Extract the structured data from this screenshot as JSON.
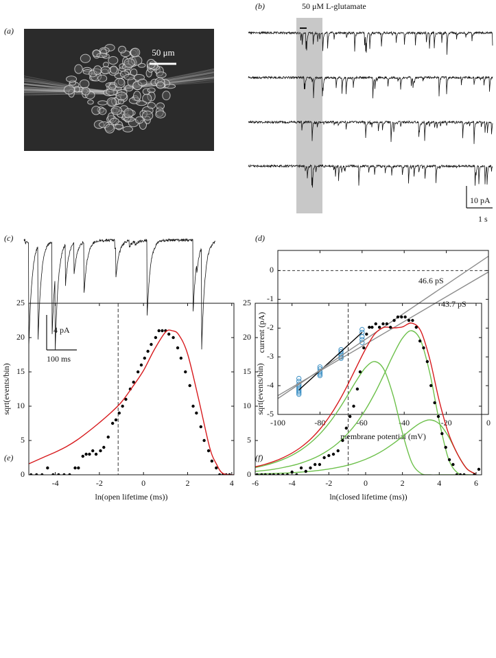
{
  "panel_labels": [
    "(a)",
    "(b)",
    "(c)",
    "(d)",
    "(e)",
    "(f)"
  ],
  "panel_a": {
    "scale_bar_label": "50 μm"
  },
  "panel_b": {
    "annotation": "50 μM L-glutamate",
    "scale_y_label": "10 pA",
    "scale_x_label": "1 s"
  },
  "panel_c": {
    "scale_y_label": "4 pA",
    "scale_x_label": "100 ms"
  },
  "chart_data": [
    {
      "type": "scatter",
      "x_label": "membrane potential (mV)",
      "y_label": "current (pA)",
      "xlim": [
        -100,
        0
      ],
      "ylim": [
        -5,
        0.7
      ],
      "xticks": [
        -100,
        -80,
        -60,
        -40,
        -20,
        0
      ],
      "yticks": [
        0,
        -1,
        -2,
        -3,
        -4,
        -5
      ],
      "hline": 0,
      "series": [
        {
          "mode": "markers",
          "color": "#3b8fc4",
          "x": [
            -90,
            -90,
            -90,
            -90,
            -90,
            -90,
            -90,
            -90,
            -90,
            -90,
            -80,
            -80,
            -80,
            -80,
            -80,
            -80,
            -70,
            -70,
            -70,
            -70,
            -70,
            -70,
            -60,
            -60,
            -60,
            -60,
            -60
          ],
          "values": [
            -3.75,
            -3.85,
            -3.95,
            -4.0,
            -4.05,
            -4.1,
            -4.15,
            -4.2,
            -4.25,
            -4.3,
            -3.35,
            -3.42,
            -3.5,
            -3.55,
            -3.6,
            -3.65,
            -2.75,
            -2.82,
            -2.9,
            -2.95,
            -3.0,
            -3.05,
            -2.05,
            -2.15,
            -2.3,
            -2.4,
            -2.5
          ]
        },
        {
          "mode": "lines",
          "color": "#000000",
          "x": [
            -90,
            -60
          ],
          "values": [
            -4.15,
            -2.15
          ]
        },
        {
          "mode": "lines",
          "name": "46.6 pS",
          "color": "#8c8c8c",
          "x": [
            -100,
            0
          ],
          "values": [
            -4.45,
            0.5
          ]
        },
        {
          "mode": "lines",
          "name": "43.7 pS",
          "color": "#8c8c8c",
          "x": [
            -100,
            0
          ],
          "values": [
            -4.35,
            -0.05
          ]
        }
      ]
    },
    {
      "type": "scatter",
      "x_label": "ln(open lifetime (ms))",
      "y_label": "sqrt(events/bin)",
      "xlim": [
        -5.2,
        4.1
      ],
      "ylim": [
        0,
        25
      ],
      "xticks": [
        -4,
        -2,
        0,
        2,
        4
      ],
      "yticks": [
        0,
        5,
        10,
        15,
        20,
        25
      ],
      "vline": -1.15,
      "series": [
        {
          "mode": "markers",
          "color": "#000000",
          "x": [
            -5.1,
            -4.85,
            -4.6,
            -4.35,
            -4.1,
            -3.85,
            -3.6,
            -3.35,
            -3.1,
            -2.95,
            -2.75,
            -2.6,
            -2.45,
            -2.3,
            -2.15,
            -1.95,
            -1.8,
            -1.6,
            -1.4,
            -1.25,
            -1.1,
            -0.95,
            -0.8,
            -0.6,
            -0.45,
            -0.25,
            -0.1,
            0.05,
            0.2,
            0.35,
            0.55,
            0.7,
            0.85,
            1.0,
            1.15,
            1.35,
            1.55,
            1.7,
            1.9,
            2.1,
            2.25,
            2.4,
            2.6,
            2.75,
            2.95,
            3.1,
            3.3,
            3.45,
            3.6,
            3.75,
            3.9
          ],
          "values": [
            0,
            0,
            0,
            1,
            0,
            0,
            0,
            0,
            1,
            1,
            2.7,
            3,
            3,
            3.5,
            3,
            3.5,
            4,
            5.5,
            7.5,
            8,
            9,
            10,
            11,
            12.5,
            13.5,
            15,
            16,
            17,
            18,
            19,
            20,
            21,
            21,
            21,
            20.5,
            20,
            18.5,
            17,
            15,
            13,
            10,
            9,
            7,
            5,
            3.5,
            2,
            1,
            0,
            0,
            0,
            0
          ]
        },
        {
          "mode": "lines",
          "color": "#d7191c",
          "x": [
            -5.2,
            -4.5,
            -4,
            -3.5,
            -3,
            -2.5,
            -2,
            -1.5,
            -1,
            -0.5,
            0,
            0.5,
            1,
            1.3,
            1.6,
            2,
            2.5,
            3,
            3.3,
            3.6,
            4.1
          ],
          "values": [
            1.6,
            2.6,
            3.3,
            4.1,
            5.1,
            6.3,
            7.6,
            9,
            10.6,
            12.8,
            15.2,
            18.3,
            20.8,
            21,
            20.4,
            17.6,
            11,
            4,
            1.6,
            0.2,
            0
          ]
        }
      ]
    },
    {
      "type": "scatter",
      "x_label": "ln(closed lifetime (ms))",
      "y_label": "sqrt(events/bin)",
      "xlim": [
        -6,
        6.3
      ],
      "ylim": [
        0,
        25
      ],
      "xticks": [
        -6,
        -4,
        -2,
        0,
        2,
        4,
        6
      ],
      "yticks": [
        0,
        5,
        10,
        15,
        20,
        25
      ],
      "vline": -0.95,
      "series": [
        {
          "mode": "lines",
          "color": "#6cc04a",
          "x": [
            -6,
            -5.5,
            -5,
            -4.5,
            -4,
            -3.5,
            -3,
            -2.5,
            -2,
            -1.5,
            -1,
            -0.5,
            0,
            0.5,
            1,
            1.5,
            2,
            2.5,
            3,
            3.5,
            4,
            4.5,
            5,
            5.5,
            6
          ],
          "values": [
            1.05,
            1.35,
            1.74,
            2.23,
            2.85,
            3.65,
            4.66,
            5.92,
            7.48,
            9.35,
            11.49,
            13.73,
            15.65,
            16.5,
            15.32,
            11.52,
            6.12,
            1.84,
            0.21,
            0,
            0,
            0,
            0,
            0,
            0
          ]
        },
        {
          "mode": "lines",
          "color": "#6cc04a",
          "x": [
            -6,
            -5.5,
            -5,
            -4.5,
            -4,
            -3.5,
            -3,
            -2.5,
            -2,
            -1.5,
            -1,
            -0.5,
            0,
            0.5,
            1,
            1.5,
            2,
            2.5,
            3,
            3.5,
            4,
            4.5,
            5,
            5.5,
            6
          ],
          "values": [
            0.49,
            0.63,
            0.81,
            1.05,
            1.34,
            1.72,
            2.21,
            2.83,
            3.63,
            4.64,
            5.93,
            7.53,
            9.52,
            11.9,
            14.63,
            17.47,
            19.91,
            21,
            19.5,
            14.66,
            7.8,
            2.34,
            0.27,
            0,
            0
          ]
        },
        {
          "mode": "lines",
          "color": "#6cc04a",
          "x": [
            -6,
            -5.5,
            -5,
            -4.5,
            -4,
            -3.5,
            -3,
            -2.5,
            -2,
            -1.5,
            -1,
            -0.5,
            0,
            0.5,
            1,
            1.5,
            2,
            2.5,
            3,
            3.5,
            4,
            4.5,
            5,
            5.5,
            6
          ],
          "values": [
            0.11,
            0.15,
            0.19,
            0.24,
            0.31,
            0.4,
            0.51,
            0.66,
            0.84,
            1.08,
            1.38,
            1.77,
            2.26,
            2.87,
            3.63,
            4.54,
            5.57,
            6.66,
            7.59,
            8,
            7.43,
            5.59,
            2.97,
            0.89,
            0.1
          ]
        },
        {
          "mode": "lines",
          "color": "#d7191c",
          "x": [
            -6,
            -5.5,
            -5,
            -4.5,
            -4,
            -3.5,
            -3,
            -2.5,
            -2,
            -1.5,
            -1,
            -0.5,
            0,
            0.5,
            1,
            1.5,
            2,
            2.5,
            3,
            3.5,
            4,
            4.5,
            5,
            5.5,
            6
          ],
          "values": [
            1.16,
            1.5,
            1.93,
            2.48,
            3.17,
            4.05,
            5.18,
            6.6,
            8.36,
            10.49,
            12.97,
            15.7,
            18.35,
            20.54,
            21.49,
            21.41,
            21.56,
            22.11,
            20.93,
            16.7,
            10.77,
            6.06,
            2.98,
            0.89,
            0.1
          ]
        },
        {
          "mode": "markers",
          "color": "#000000",
          "x": [
            -5.9,
            -5.65,
            -5.45,
            -5.2,
            -5,
            -4.75,
            -4.5,
            -4.25,
            -4,
            -3.75,
            -3.5,
            -3.25,
            -3,
            -2.75,
            -2.5,
            -2.25,
            -2,
            -1.75,
            -1.5,
            -1.25,
            -1.05,
            -0.85,
            -0.65,
            -0.45,
            -0.3,
            -0.1,
            0.05,
            0.2,
            0.35,
            0.55,
            0.75,
            0.95,
            1.15,
            1.35,
            1.55,
            1.75,
            1.95,
            2.15,
            2.35,
            2.55,
            2.75,
            2.95,
            3.15,
            3.35,
            3.55,
            3.75,
            3.95,
            4.15,
            4.35,
            4.55,
            4.75,
            4.95,
            5.15,
            5.35,
            5.9,
            6.15
          ],
          "values": [
            0,
            0,
            0,
            0,
            0,
            0,
            0,
            0,
            0.4,
            0,
            1,
            0.5,
            1,
            1.5,
            1.5,
            2.5,
            2.8,
            3,
            3.5,
            5,
            6.8,
            8.5,
            10,
            12.5,
            15,
            18.5,
            20.5,
            21.5,
            21.5,
            22,
            21.5,
            22,
            22,
            21.5,
            22.5,
            23,
            23,
            23,
            22.5,
            22.5,
            21.5,
            19.5,
            18.5,
            16.5,
            13,
            10.5,
            8.5,
            6,
            4,
            2.2,
            1.5,
            0,
            0,
            0,
            0,
            0.8
          ]
        }
      ]
    }
  ]
}
